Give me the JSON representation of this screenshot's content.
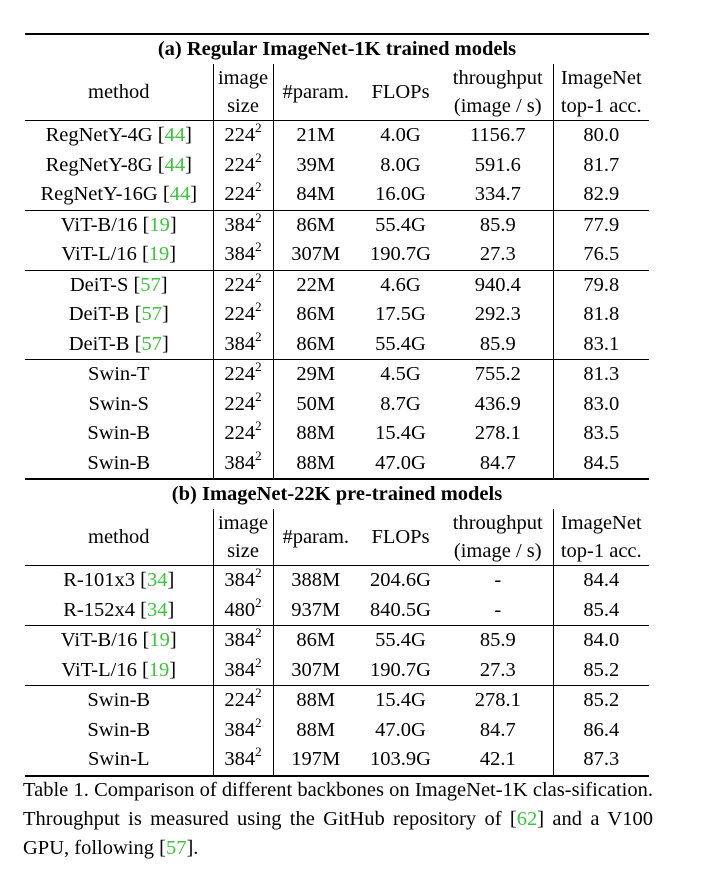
{
  "colors": {
    "citation": "#3cc43c",
    "text": "#000000"
  },
  "table": {
    "sections": [
      {
        "title": "(a) Regular ImageNet-1K trained models",
        "header": [
          [
            "method"
          ],
          [
            "image",
            "size"
          ],
          [
            "#param."
          ],
          [
            "FLOPs"
          ],
          [
            "throughput",
            "(image / s)"
          ],
          [
            "ImageNet",
            "top-1 acc."
          ]
        ],
        "groups": [
          [
            {
              "method": "RegNetY-4G",
              "ref": "44",
              "size": "224",
              "exp": "2",
              "params": "21M",
              "flops": "4.0G",
              "throughput": "1156.7",
              "acc": "80.0"
            },
            {
              "method": "RegNetY-8G",
              "ref": "44",
              "size": "224",
              "exp": "2",
              "params": "39M",
              "flops": "8.0G",
              "throughput": "591.6",
              "acc": "81.7"
            },
            {
              "method": "RegNetY-16G",
              "ref": "44",
              "size": "224",
              "exp": "2",
              "params": "84M",
              "flops": "16.0G",
              "throughput": "334.7",
              "acc": "82.9"
            }
          ],
          [
            {
              "method": "ViT-B/16",
              "ref": "19",
              "size": "384",
              "exp": "2",
              "params": "86M",
              "flops": "55.4G",
              "throughput": "85.9",
              "acc": "77.9"
            },
            {
              "method": "ViT-L/16",
              "ref": "19",
              "size": "384",
              "exp": "2",
              "params": "307M",
              "flops": "190.7G",
              "throughput": "27.3",
              "acc": "76.5"
            }
          ],
          [
            {
              "method": "DeiT-S",
              "ref": "57",
              "size": "224",
              "exp": "2",
              "params": "22M",
              "flops": "4.6G",
              "throughput": "940.4",
              "acc": "79.8"
            },
            {
              "method": "DeiT-B",
              "ref": "57",
              "size": "224",
              "exp": "2",
              "params": "86M",
              "flops": "17.5G",
              "throughput": "292.3",
              "acc": "81.8"
            },
            {
              "method": "DeiT-B",
              "ref": "57",
              "size": "384",
              "exp": "2",
              "params": "86M",
              "flops": "55.4G",
              "throughput": "85.9",
              "acc": "83.1"
            }
          ],
          [
            {
              "method": "Swin-T",
              "ref": "",
              "size": "224",
              "exp": "2",
              "params": "29M",
              "flops": "4.5G",
              "throughput": "755.2",
              "acc": "81.3"
            },
            {
              "method": "Swin-S",
              "ref": "",
              "size": "224",
              "exp": "2",
              "params": "50M",
              "flops": "8.7G",
              "throughput": "436.9",
              "acc": "83.0"
            },
            {
              "method": "Swin-B",
              "ref": "",
              "size": "224",
              "exp": "2",
              "params": "88M",
              "flops": "15.4G",
              "throughput": "278.1",
              "acc": "83.5"
            },
            {
              "method": "Swin-B",
              "ref": "",
              "size": "384",
              "exp": "2",
              "params": "88M",
              "flops": "47.0G",
              "throughput": "84.7",
              "acc": "84.5"
            }
          ]
        ]
      },
      {
        "title": "(b) ImageNet-22K pre-trained models",
        "header": [
          [
            "method"
          ],
          [
            "image",
            "size"
          ],
          [
            "#param."
          ],
          [
            "FLOPs"
          ],
          [
            "throughput",
            "(image / s)"
          ],
          [
            "ImageNet",
            "top-1 acc."
          ]
        ],
        "groups": [
          [
            {
              "method": "R-101x3",
              "ref": "34",
              "size": "384",
              "exp": "2",
              "params": "388M",
              "flops": "204.6G",
              "throughput": "-",
              "acc": "84.4"
            },
            {
              "method": "R-152x4",
              "ref": "34",
              "size": "480",
              "exp": "2",
              "params": "937M",
              "flops": "840.5G",
              "throughput": "-",
              "acc": "85.4"
            }
          ],
          [
            {
              "method": "ViT-B/16",
              "ref": "19",
              "size": "384",
              "exp": "2",
              "params": "86M",
              "flops": "55.4G",
              "throughput": "85.9",
              "acc": "84.0"
            },
            {
              "method": "ViT-L/16",
              "ref": "19",
              "size": "384",
              "exp": "2",
              "params": "307M",
              "flops": "190.7G",
              "throughput": "27.3",
              "acc": "85.2"
            }
          ],
          [
            {
              "method": "Swin-B",
              "ref": "",
              "size": "224",
              "exp": "2",
              "params": "88M",
              "flops": "15.4G",
              "throughput": "278.1",
              "acc": "85.2"
            },
            {
              "method": "Swin-B",
              "ref": "",
              "size": "384",
              "exp": "2",
              "params": "88M",
              "flops": "47.0G",
              "throughput": "84.7",
              "acc": "86.4"
            },
            {
              "method": "Swin-L",
              "ref": "",
              "size": "384",
              "exp": "2",
              "params": "197M",
              "flops": "103.9G",
              "throughput": "42.1",
              "acc": "87.3"
            }
          ]
        ]
      }
    ]
  },
  "caption": {
    "parts": [
      {
        "text": "Table 1. Comparison of different backbones on ImageNet-1K clas-sification.  Throughput is measured using the GitHub repository of ["
      },
      {
        "text": "62",
        "cite": true
      },
      {
        "text": "] and a V100 GPU, following ["
      },
      {
        "text": "57",
        "cite": true
      },
      {
        "text": "]."
      }
    ]
  }
}
